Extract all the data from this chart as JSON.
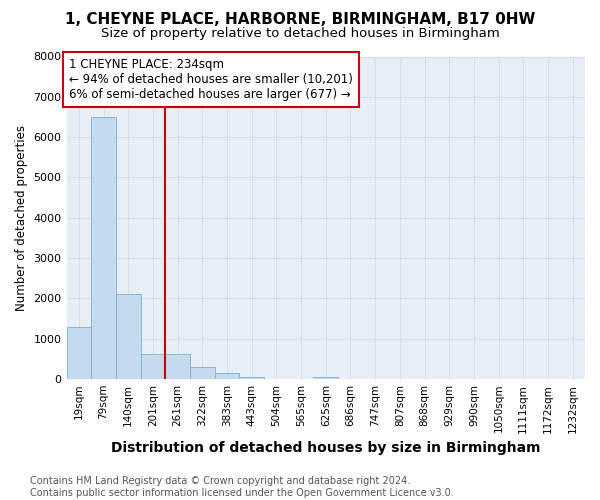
{
  "title": "1, CHEYNE PLACE, HARBORNE, BIRMINGHAM, B17 0HW",
  "subtitle": "Size of property relative to detached houses in Birmingham",
  "xlabel": "Distribution of detached houses by size in Birmingham",
  "ylabel": "Number of detached properties",
  "categories": [
    "19sqm",
    "79sqm",
    "140sqm",
    "201sqm",
    "261sqm",
    "322sqm",
    "383sqm",
    "443sqm",
    "504sqm",
    "565sqm",
    "625sqm",
    "686sqm",
    "747sqm",
    "807sqm",
    "868sqm",
    "929sqm",
    "990sqm",
    "1050sqm",
    "1111sqm",
    "1172sqm",
    "1232sqm"
  ],
  "values": [
    1300,
    6500,
    2100,
    630,
    630,
    290,
    140,
    60,
    0,
    0,
    60,
    0,
    0,
    0,
    0,
    0,
    0,
    0,
    0,
    0,
    0
  ],
  "bar_color": "#c5d9ef",
  "bar_edge_color": "#7bafd4",
  "vline_color": "#cc0000",
  "vline_pos": 3.5,
  "annotation_text": "1 CHEYNE PLACE: 234sqm\n← 94% of detached houses are smaller (10,201)\n6% of semi-detached houses are larger (677) →",
  "annotation_box_color": "#cc0000",
  "ylim_max": 8000,
  "yticks": [
    0,
    1000,
    2000,
    3000,
    4000,
    5000,
    6000,
    7000,
    8000
  ],
  "footer": "Contains HM Land Registry data © Crown copyright and database right 2024.\nContains public sector information licensed under the Open Government Licence v3.0.",
  "grid_color": "#c8d8e8",
  "bg_color": "#e8eef5",
  "title_fontsize": 11,
  "subtitle_fontsize": 9.5,
  "xlabel_fontsize": 10,
  "ylabel_fontsize": 8.5,
  "tick_fontsize": 7.5,
  "footer_fontsize": 7,
  "ann_fontsize": 8.5
}
